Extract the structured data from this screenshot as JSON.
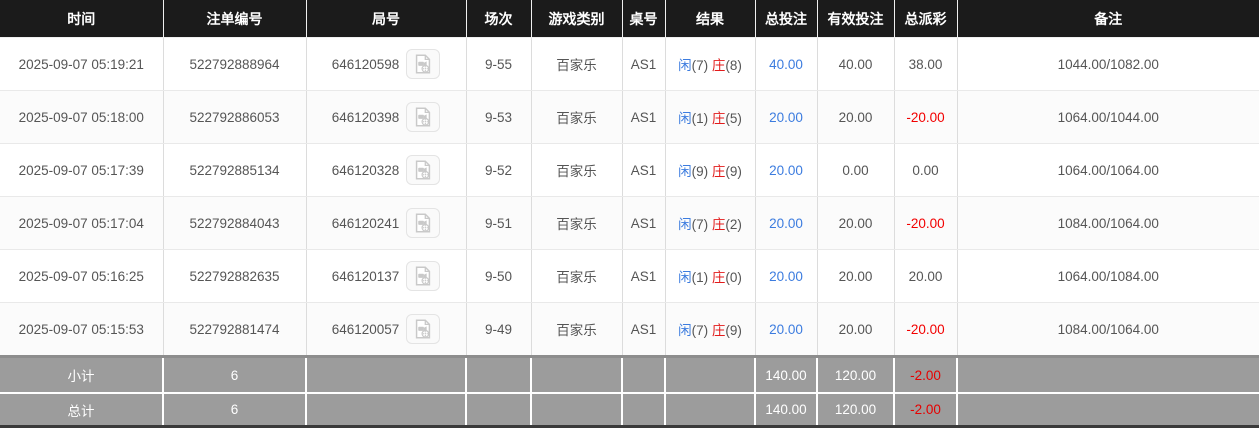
{
  "table": {
    "columns": [
      {
        "key": "time",
        "label": "时间"
      },
      {
        "key": "bet_id",
        "label": "注单编号"
      },
      {
        "key": "round",
        "label": "局号"
      },
      {
        "key": "session",
        "label": "场次"
      },
      {
        "key": "game_type",
        "label": "游戏类别"
      },
      {
        "key": "table_no",
        "label": "桌号"
      },
      {
        "key": "result",
        "label": "结果"
      },
      {
        "key": "total_bet",
        "label": "总投注"
      },
      {
        "key": "valid_bet",
        "label": "有效投注"
      },
      {
        "key": "total_payout",
        "label": "总派彩"
      },
      {
        "key": "remark",
        "label": "备注"
      }
    ],
    "result_labels": {
      "player": "闲",
      "banker": "庄"
    },
    "rows": [
      {
        "time": "2025-09-07 05:19:21",
        "bet_id": "522792888964",
        "round": "646120598",
        "session": "9-55",
        "game_type": "百家乐",
        "table_no": "AS1",
        "result": {
          "player": "7",
          "banker": "8"
        },
        "total_bet": "40.00",
        "valid_bet": "40.00",
        "total_payout": "38.00",
        "remark": "1044.00/1082.00"
      },
      {
        "time": "2025-09-07 05:18:00",
        "bet_id": "522792886053",
        "round": "646120398",
        "session": "9-53",
        "game_type": "百家乐",
        "table_no": "AS1",
        "result": {
          "player": "1",
          "banker": "5"
        },
        "total_bet": "20.00",
        "valid_bet": "20.00",
        "total_payout": "-20.00",
        "remark": "1064.00/1044.00"
      },
      {
        "time": "2025-09-07 05:17:39",
        "bet_id": "522792885134",
        "round": "646120328",
        "session": "9-52",
        "game_type": "百家乐",
        "table_no": "AS1",
        "result": {
          "player": "9",
          "banker": "9"
        },
        "total_bet": "20.00",
        "valid_bet": "0.00",
        "total_payout": "0.00",
        "remark": "1064.00/1064.00"
      },
      {
        "time": "2025-09-07 05:17:04",
        "bet_id": "522792884043",
        "round": "646120241",
        "session": "9-51",
        "game_type": "百家乐",
        "table_no": "AS1",
        "result": {
          "player": "7",
          "banker": "2"
        },
        "total_bet": "20.00",
        "valid_bet": "20.00",
        "total_payout": "-20.00",
        "remark": "1084.00/1064.00"
      },
      {
        "time": "2025-09-07 05:16:25",
        "bet_id": "522792882635",
        "round": "646120137",
        "session": "9-50",
        "game_type": "百家乐",
        "table_no": "AS1",
        "result": {
          "player": "1",
          "banker": "0"
        },
        "total_bet": "20.00",
        "valid_bet": "20.00",
        "total_payout": "20.00",
        "remark": "1064.00/1084.00"
      },
      {
        "time": "2025-09-07 05:15:53",
        "bet_id": "522792881474",
        "round": "646120057",
        "session": "9-49",
        "game_type": "百家乐",
        "table_no": "AS1",
        "result": {
          "player": "7",
          "banker": "9"
        },
        "total_bet": "20.00",
        "valid_bet": "20.00",
        "total_payout": "-20.00",
        "remark": "1084.00/1064.00"
      }
    ],
    "footer": [
      {
        "label": "小计",
        "count": "6",
        "total_bet": "140.00",
        "valid_bet": "120.00",
        "total_payout": "-2.00"
      },
      {
        "label": "总计",
        "count": "6",
        "total_bet": "140.00",
        "valid_bet": "120.00",
        "total_payout": "-2.00"
      }
    ]
  },
  "icons": {
    "video_replay": "video-file-icon"
  },
  "colors": {
    "header_bg": "#1b1b1b",
    "header_text": "#ffffff",
    "bet_blue": "#3c7cdf",
    "negative_red": "#f20000",
    "banker_red": "#e21b1b",
    "footer_bg": "#9c9c9c",
    "footer_text": "#ffffff"
  }
}
